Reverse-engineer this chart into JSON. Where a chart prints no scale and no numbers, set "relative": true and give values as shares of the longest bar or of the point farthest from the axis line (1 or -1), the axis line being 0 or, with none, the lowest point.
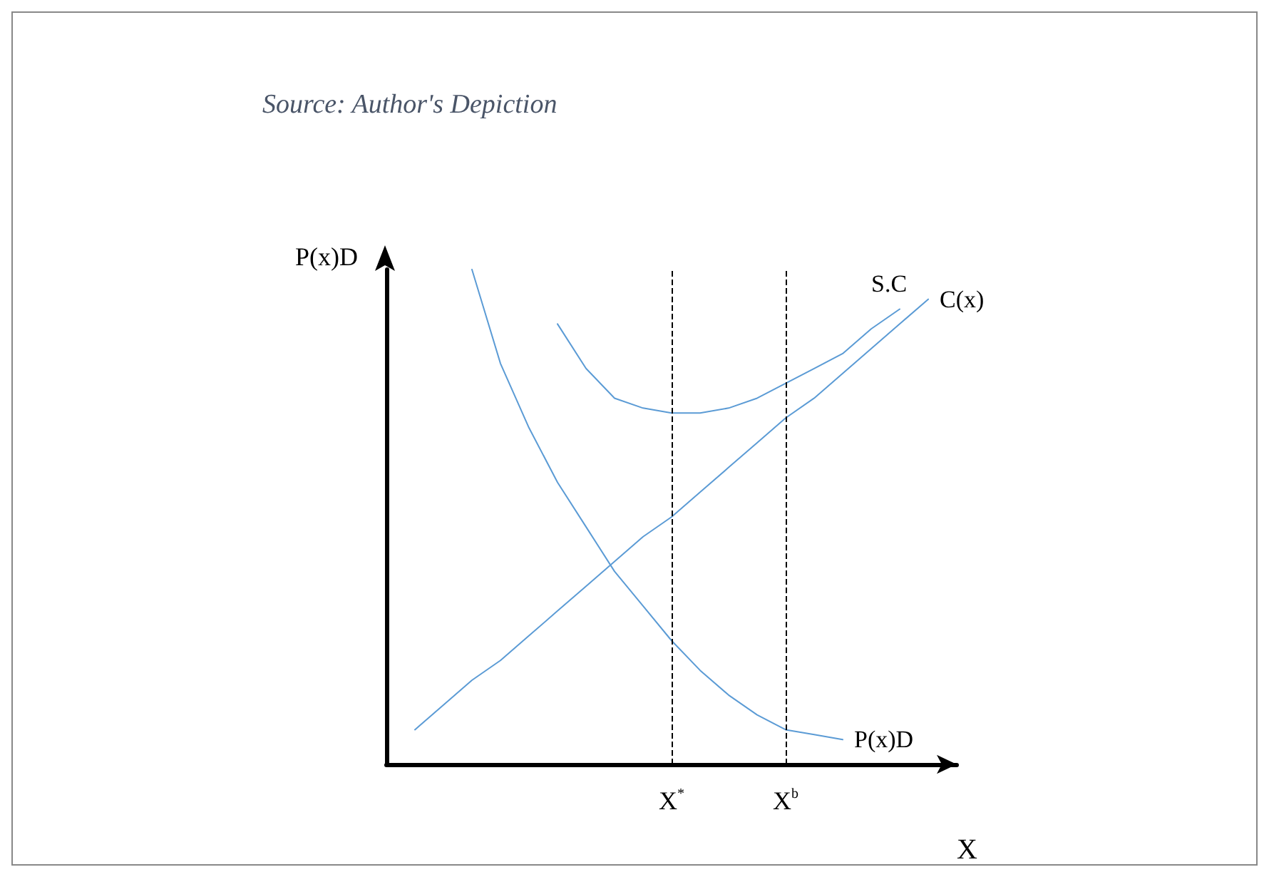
{
  "chart_data": {
    "type": "line",
    "relative": true,
    "xlabel": "X",
    "ylabel": "P(x)D",
    "annotations": [
      "Source: Author's Depiction"
    ],
    "categories": [
      null,
      null,
      null,
      null,
      null,
      null,
      null,
      null,
      null,
      null,
      "X$^{*}$",
      null,
      null,
      null,
      "X$^{b}$",
      null,
      null,
      null,
      null,
      null,
      null
    ],
    "series": [
      {
        "name": "P(x)D",
        "color": "#5b9bd5",
        "values": [
          null,
          null,
          null,
          1.0,
          0.81,
          0.68,
          0.57,
          0.48,
          0.39,
          0.32,
          0.25,
          0.19,
          0.14,
          0.1,
          0.07,
          0.06,
          0.05,
          null,
          null,
          null,
          null
        ]
      },
      {
        "name": "S.C",
        "color": "#5b9bd5",
        "values": [
          null,
          null,
          null,
          null,
          null,
          null,
          0.89,
          0.8,
          0.74,
          0.72,
          0.71,
          0.71,
          0.72,
          0.74,
          0.77,
          0.8,
          0.83,
          0.88,
          0.92,
          null,
          null
        ]
      },
      {
        "name": "C(x)",
        "color": "#5b9bd5",
        "values": [
          null,
          0.07,
          0.12,
          0.17,
          0.21,
          0.26,
          0.31,
          0.36,
          0.41,
          0.46,
          0.5,
          0.55,
          0.6,
          0.65,
          0.7,
          0.74,
          0.79,
          0.84,
          0.89,
          0.94,
          null
        ]
      }
    ],
    "ref_lines": [
      {
        "axis": "x",
        "value": "X$^{*}$",
        "color": "#000000",
        "line_style": "dashed"
      },
      {
        "axis": "x",
        "value": "X$^{b}$",
        "color": "#000000",
        "line_style": "dashed"
      }
    ],
    "grid": false,
    "legend": false,
    "marker": "none",
    "line_style": "solid"
  }
}
